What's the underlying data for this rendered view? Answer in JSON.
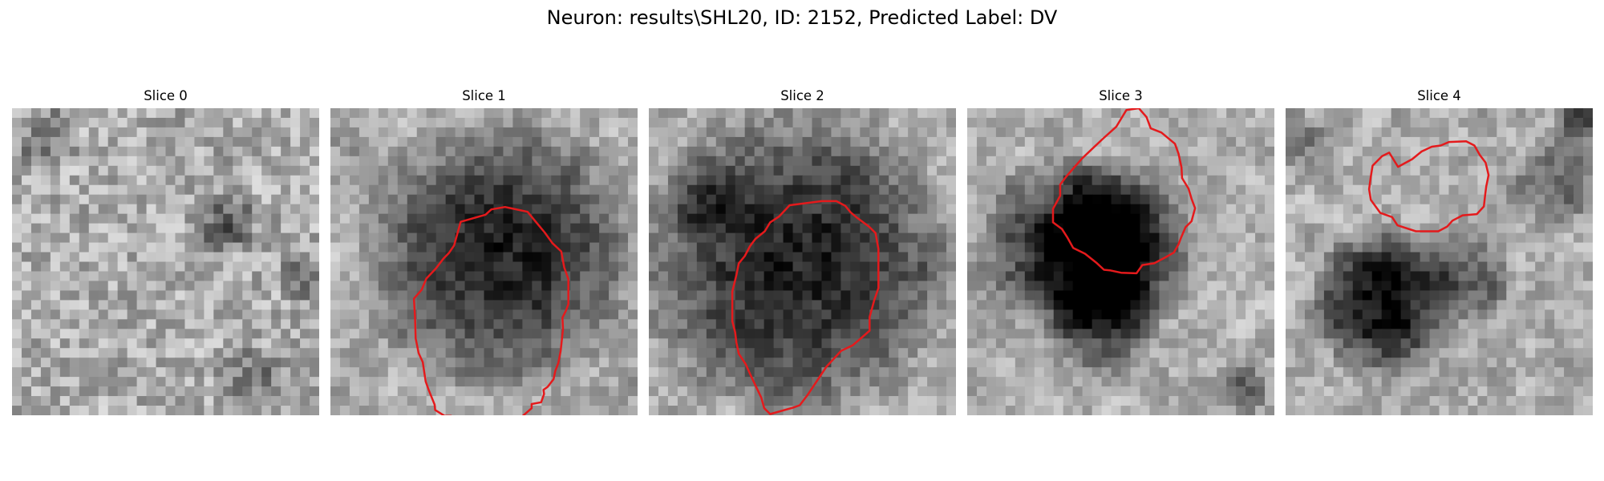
{
  "figure": {
    "title": "Neuron: results\\SHL20, ID: 2152, Predicted Label: DV"
  },
  "panels": [
    {
      "title": "Slice 0"
    },
    {
      "title": "Slice 1"
    },
    {
      "title": "Slice 2"
    },
    {
      "title": "Slice 3"
    },
    {
      "title": "Slice 4"
    }
  ],
  "colors": {
    "contour": "#e41a1c",
    "colormap": "gray"
  }
}
